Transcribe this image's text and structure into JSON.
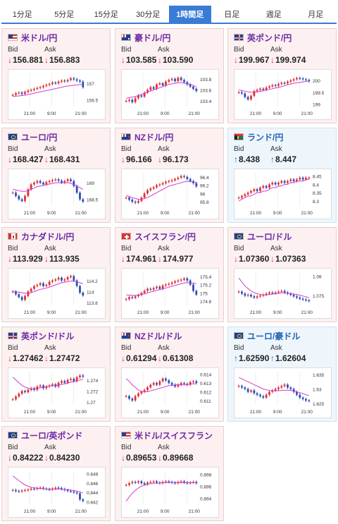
{
  "tabs": [
    {
      "label": "1分足",
      "active": false
    },
    {
      "label": "5分足",
      "active": false
    },
    {
      "label": "15分足",
      "active": false
    },
    {
      "label": "30分足",
      "active": false
    },
    {
      "label": "1時間足",
      "active": true
    },
    {
      "label": "日足",
      "active": false
    },
    {
      "label": "週足",
      "active": false
    },
    {
      "label": "月足",
      "active": false
    }
  ],
  "bid_label": "Bid",
  "ask_label": "Ask",
  "x_ticks": [
    "21:00",
    "9:00",
    "21:00"
  ],
  "colors": {
    "down_bg": "#fdf0f0",
    "up_bg": "#eef6fc",
    "bull": "#e03030",
    "bear": "#2a4db5",
    "ma": "#d23bd2",
    "title_down": "#6b2aa6",
    "title_up": "#1e63b8"
  },
  "cards": [
    {
      "name": "米ドル/円",
      "flag": "us",
      "dir": "down",
      "bid": "156.881",
      "ask": "156.883",
      "y_ticks": [
        "157",
        "156.5"
      ],
      "chart_data": {
        "type": "candlestick",
        "close": [
          156.65,
          156.7,
          156.72,
          156.68,
          156.74,
          156.78,
          156.8,
          156.83,
          156.86,
          156.88,
          156.92,
          156.95,
          156.98,
          157.02,
          157.0,
          157.05,
          157.08,
          157.06,
          157.1,
          157.15,
          157.12,
          157.08,
          157.05,
          156.88
        ],
        "ma": [
          156.6,
          156.61,
          156.62,
          156.63,
          156.64,
          156.66,
          156.68,
          156.7,
          156.72,
          156.74,
          156.76,
          156.78,
          156.8,
          156.82,
          156.84,
          156.86,
          156.88,
          156.9,
          156.92,
          156.93,
          156.94,
          156.95,
          156.96,
          156.96
        ],
        "ylim": [
          156.3,
          157.3
        ]
      }
    },
    {
      "name": "豪ドル/円",
      "flag": "au",
      "dir": "down",
      "bid": "103.585",
      "ask": "103.590",
      "y_ticks": [
        "103.8",
        "103.6",
        "103.4"
      ],
      "chart_data": {
        "type": "candlestick",
        "close": [
          103.4,
          103.42,
          103.38,
          103.45,
          103.5,
          103.48,
          103.55,
          103.6,
          103.65,
          103.62,
          103.7,
          103.72,
          103.68,
          103.75,
          103.78,
          103.8,
          103.76,
          103.82,
          103.78,
          103.74,
          103.7,
          103.66,
          103.62,
          103.58
        ],
        "ma": [
          103.45,
          103.46,
          103.47,
          103.48,
          103.5,
          103.52,
          103.54,
          103.56,
          103.58,
          103.6,
          103.62,
          103.64,
          103.66,
          103.68,
          103.7,
          103.71,
          103.72,
          103.73,
          103.73,
          103.72,
          103.71,
          103.7,
          103.68,
          103.66
        ],
        "ylim": [
          103.3,
          103.9
        ]
      }
    },
    {
      "name": "英ポンド/円",
      "flag": "gb",
      "dir": "down",
      "bid": "199.967",
      "ask": "199.974",
      "y_ticks": [
        "200",
        "199.5",
        "199"
      ],
      "chart_data": {
        "type": "candlestick",
        "close": [
          199.5,
          199.45,
          199.3,
          199.2,
          199.35,
          199.55,
          199.6,
          199.65,
          199.6,
          199.7,
          199.75,
          199.8,
          199.78,
          199.85,
          199.9,
          199.88,
          199.95,
          200.0,
          200.05,
          200.1,
          200.08,
          200.05,
          200.02,
          199.97
        ],
        "ma": [
          199.6,
          199.58,
          199.55,
          199.52,
          199.5,
          199.5,
          199.52,
          199.54,
          199.56,
          199.6,
          199.62,
          199.65,
          199.68,
          199.7,
          199.74,
          199.78,
          199.82,
          199.85,
          199.88,
          199.9,
          199.92,
          199.94,
          199.96,
          199.97
        ],
        "ylim": [
          198.9,
          200.3
        ]
      }
    },
    {
      "name": "ユーロ/円",
      "flag": "eu",
      "dir": "down",
      "bid": "168.427",
      "ask": "168.431",
      "y_ticks": [
        "169",
        "168.5"
      ],
      "chart_data": {
        "type": "candlestick",
        "close": [
          168.7,
          168.6,
          168.5,
          168.45,
          168.6,
          168.8,
          168.95,
          169.0,
          169.05,
          169.0,
          168.95,
          169.02,
          169.05,
          169.08,
          169.1,
          169.06,
          169.0,
          169.05,
          169.1,
          169.05,
          168.9,
          168.7,
          168.5,
          168.43
        ],
        "ma": [
          168.8,
          168.78,
          168.76,
          168.74,
          168.74,
          168.76,
          168.8,
          168.84,
          168.88,
          168.9,
          168.92,
          168.94,
          168.96,
          168.98,
          169.0,
          169.0,
          169.0,
          169.0,
          169.0,
          168.98,
          168.95,
          168.9,
          168.85,
          168.8
        ],
        "ylim": [
          168.3,
          169.3
        ]
      }
    },
    {
      "name": "NZドル/円",
      "flag": "nz",
      "dir": "down",
      "bid": "96.166",
      "ask": "96.173",
      "y_ticks": [
        "96.4",
        "96.2",
        "96",
        "95.8"
      ],
      "chart_data": {
        "type": "candlestick",
        "close": [
          95.9,
          95.85,
          95.8,
          95.78,
          95.82,
          95.9,
          96.0,
          96.08,
          96.12,
          96.15,
          96.2,
          96.22,
          96.25,
          96.28,
          96.3,
          96.32,
          96.35,
          96.38,
          96.42,
          96.4,
          96.35,
          96.3,
          96.25,
          96.17
        ],
        "ma": [
          95.95,
          95.93,
          95.9,
          95.88,
          95.86,
          95.86,
          95.88,
          95.9,
          95.94,
          95.98,
          96.02,
          96.06,
          96.1,
          96.14,
          96.18,
          96.2,
          96.22,
          96.24,
          96.26,
          96.28,
          96.29,
          96.29,
          96.28,
          96.26
        ],
        "ylim": [
          95.7,
          96.5
        ]
      }
    },
    {
      "name": "ランド/円",
      "flag": "za",
      "dir": "up",
      "bid": "8.438",
      "ask": "8.447",
      "y_ticks": [
        "8.45",
        "8.4",
        "8.35",
        "8.3"
      ],
      "chart_data": {
        "type": "candlestick",
        "close": [
          8.32,
          8.33,
          8.34,
          8.35,
          8.36,
          8.37,
          8.36,
          8.38,
          8.39,
          8.38,
          8.4,
          8.41,
          8.4,
          8.41,
          8.42,
          8.41,
          8.42,
          8.43,
          8.42,
          8.43,
          8.44,
          8.43,
          8.44,
          8.44
        ],
        "ma": [
          8.3,
          8.31,
          8.32,
          8.33,
          8.33,
          8.34,
          8.35,
          8.35,
          8.36,
          8.36,
          8.37,
          8.38,
          8.38,
          8.39,
          8.39,
          8.4,
          8.4,
          8.41,
          8.41,
          8.42,
          8.42,
          8.42,
          8.43,
          8.43
        ],
        "ylim": [
          8.27,
          8.47
        ]
      }
    },
    {
      "name": "カナダドル/円",
      "flag": "ca",
      "dir": "down",
      "bid": "113.929",
      "ask": "113.935",
      "y_ticks": [
        "114.2",
        "114",
        "113.8"
      ],
      "chart_data": {
        "type": "candlestick",
        "close": [
          114.0,
          113.95,
          113.9,
          113.85,
          113.92,
          114.0,
          114.05,
          114.1,
          114.12,
          114.15,
          114.1,
          114.12,
          114.18,
          114.2,
          114.22,
          114.25,
          114.2,
          114.22,
          114.26,
          114.28,
          114.2,
          114.1,
          113.98,
          113.93
        ],
        "ma": [
          114.0,
          114.0,
          113.99,
          113.98,
          113.97,
          113.97,
          113.98,
          114.0,
          114.02,
          114.04,
          114.05,
          114.06,
          114.08,
          114.1,
          114.12,
          114.14,
          114.16,
          114.17,
          114.18,
          114.19,
          114.19,
          114.18,
          114.16,
          114.14
        ],
        "ylim": [
          113.75,
          114.35
        ]
      }
    },
    {
      "name": "スイスフラン/円",
      "flag": "ch",
      "dir": "down",
      "bid": "174.961",
      "ask": "174.977",
      "y_ticks": [
        "175.4",
        "175.2",
        "175",
        "174.8"
      ],
      "chart_data": {
        "type": "candlestick",
        "close": [
          174.85,
          174.9,
          174.88,
          174.92,
          174.95,
          175.0,
          175.05,
          175.1,
          175.08,
          175.12,
          175.15,
          175.1,
          175.18,
          175.2,
          175.22,
          175.25,
          175.28,
          175.3,
          175.32,
          175.35,
          175.3,
          175.2,
          175.05,
          174.96
        ],
        "ma": [
          174.95,
          174.95,
          174.94,
          174.94,
          174.95,
          174.96,
          174.98,
          175.0,
          175.02,
          175.04,
          175.06,
          175.08,
          175.1,
          175.12,
          175.14,
          175.16,
          175.18,
          175.2,
          175.22,
          175.24,
          175.25,
          175.25,
          175.24,
          175.22
        ],
        "ylim": [
          174.7,
          175.5
        ]
      }
    },
    {
      "name": "ユーロ/ドル",
      "flag": "eu",
      "dir": "down",
      "bid": "1.07360",
      "ask": "1.07363",
      "y_ticks": [
        "1.08",
        "1.075"
      ],
      "chart_data": {
        "type": "candlestick",
        "close": [
          1.076,
          1.0755,
          1.075,
          1.0752,
          1.0748,
          1.0745,
          1.0748,
          1.075,
          1.0752,
          1.0755,
          1.0758,
          1.0756,
          1.0758,
          1.076,
          1.0762,
          1.0758,
          1.0755,
          1.0752,
          1.0748,
          1.0745,
          1.0742,
          1.074,
          1.0738,
          1.0736
        ],
        "ma": [
          1.0795,
          1.0785,
          1.0775,
          1.0768,
          1.0762,
          1.0758,
          1.0755,
          1.0753,
          1.0752,
          1.0752,
          1.0753,
          1.0754,
          1.0755,
          1.0756,
          1.0757,
          1.0757,
          1.0756,
          1.0755,
          1.0754,
          1.0753,
          1.0751,
          1.0749,
          1.0747,
          1.0745
        ],
        "ylim": [
          1.0725,
          1.081
        ]
      }
    },
    {
      "name": "英ポンド/ドル",
      "flag": "gb",
      "dir": "down",
      "bid": "1.27462",
      "ask": "1.27472",
      "y_ticks": [
        "1.274",
        "1.272",
        "1.27"
      ],
      "chart_data": {
        "type": "candlestick",
        "close": [
          1.2705,
          1.271,
          1.2715,
          1.272,
          1.2718,
          1.2722,
          1.2725,
          1.2722,
          1.2728,
          1.273,
          1.2725,
          1.2728,
          1.273,
          1.2732,
          1.2728,
          1.2735,
          1.2738,
          1.2735,
          1.274,
          1.2742,
          1.2738,
          1.2745,
          1.2748,
          1.2746
        ],
        "ma": [
          1.2745,
          1.274,
          1.2735,
          1.273,
          1.2727,
          1.2725,
          1.2724,
          1.2724,
          1.2725,
          1.2726,
          1.2727,
          1.2728,
          1.2729,
          1.273,
          1.273,
          1.2731,
          1.2732,
          1.2733,
          1.2734,
          1.2736,
          1.2737,
          1.2738,
          1.274,
          1.2741
        ],
        "ylim": [
          1.2695,
          1.2755
        ]
      }
    },
    {
      "name": "NZドル/ドル",
      "flag": "nz",
      "dir": "down",
      "bid": "0.61294",
      "ask": "0.61308",
      "y_ticks": [
        "0.614",
        "0.613",
        "0.612",
        "0.611"
      ],
      "chart_data": {
        "type": "candlestick",
        "close": [
          0.6115,
          0.6112,
          0.611,
          0.6115,
          0.6118,
          0.612,
          0.6122,
          0.6125,
          0.6128,
          0.613,
          0.6128,
          0.6132,
          0.6135,
          0.6133,
          0.613,
          0.6128,
          0.6126,
          0.6128,
          0.613,
          0.6129,
          0.6128,
          0.6131,
          0.6132,
          0.613
        ],
        "ma": [
          0.6135,
          0.6132,
          0.6128,
          0.6125,
          0.6122,
          0.612,
          0.612,
          0.612,
          0.6121,
          0.6122,
          0.6123,
          0.6124,
          0.6125,
          0.6126,
          0.6127,
          0.6127,
          0.6128,
          0.6128,
          0.6128,
          0.6128,
          0.6128,
          0.6129,
          0.6129,
          0.6129
        ],
        "ylim": [
          0.6105,
          0.6143
        ]
      }
    },
    {
      "name": "ユーロ/豪ドル",
      "flag": "eu",
      "dir": "up",
      "bid": "1.62590",
      "ask": "1.62604",
      "y_ticks": [
        "1.635",
        "1.63",
        "1.625"
      ],
      "chart_data": {
        "type": "candlestick",
        "close": [
          1.631,
          1.6305,
          1.63,
          1.629,
          1.6295,
          1.6285,
          1.628,
          1.6275,
          1.627,
          1.628,
          1.629,
          1.6295,
          1.63,
          1.6305,
          1.631,
          1.6315,
          1.6305,
          1.63,
          1.629,
          1.628,
          1.627,
          1.6265,
          1.626,
          1.6259
        ],
        "ma": [
          1.634,
          1.6335,
          1.633,
          1.6325,
          1.632,
          1.6315,
          1.631,
          1.6305,
          1.63,
          1.6297,
          1.6295,
          1.6294,
          1.6294,
          1.6294,
          1.6295,
          1.6296,
          1.6296,
          1.6295,
          1.6293,
          1.629,
          1.6287,
          1.6284,
          1.628,
          1.6277
        ],
        "ylim": [
          1.6245,
          1.636
        ]
      }
    },
    {
      "name": "ユーロ/英ポンド",
      "flag": "eu",
      "dir": "down",
      "bid": "0.84222",
      "ask": "0.84230",
      "y_ticks": [
        "0.848",
        "0.846",
        "0.844",
        "0.842"
      ],
      "chart_data": {
        "type": "candlestick",
        "close": [
          0.8445,
          0.8443,
          0.8442,
          0.8444,
          0.8445,
          0.8446,
          0.8448,
          0.8447,
          0.8449,
          0.845,
          0.8448,
          0.8447,
          0.8446,
          0.8448,
          0.845,
          0.8449,
          0.8447,
          0.8445,
          0.8443,
          0.8442,
          0.844,
          0.8438,
          0.8425,
          0.8422
        ],
        "ma": [
          0.8475,
          0.847,
          0.8465,
          0.846,
          0.8456,
          0.8453,
          0.8451,
          0.845,
          0.8449,
          0.8448,
          0.8448,
          0.8447,
          0.8447,
          0.8447,
          0.8447,
          0.8447,
          0.8447,
          0.8446,
          0.8446,
          0.8445,
          0.8444,
          0.8443,
          0.8441,
          0.8439
        ],
        "ylim": [
          0.8415,
          0.8485
        ]
      }
    },
    {
      "name": "米ドル/スイスフラン",
      "flag": "us",
      "dir": "down",
      "bid": "0.89653",
      "ask": "0.89668",
      "y_ticks": [
        "0.898",
        "0.896",
        "0.894"
      ],
      "chart_data": {
        "type": "candlestick",
        "close": [
          0.8962,
          0.8965,
          0.8967,
          0.8966,
          0.8968,
          0.8965,
          0.8963,
          0.8966,
          0.8967,
          0.8968,
          0.8966,
          0.8965,
          0.8967,
          0.8968,
          0.8967,
          0.8966,
          0.8965,
          0.8967,
          0.8968,
          0.8966,
          0.8965,
          0.8966,
          0.8967,
          0.8965
        ],
        "ma": [
          0.8935,
          0.8942,
          0.8948,
          0.8953,
          0.8957,
          0.896,
          0.8962,
          0.8963,
          0.8964,
          0.8965,
          0.8965,
          0.8965,
          0.8966,
          0.8966,
          0.8966,
          0.8966,
          0.8966,
          0.8966,
          0.8966,
          0.8966,
          0.8966,
          0.8966,
          0.8966,
          0.8966
        ],
        "ylim": [
          0.893,
          0.8985
        ]
      }
    }
  ]
}
